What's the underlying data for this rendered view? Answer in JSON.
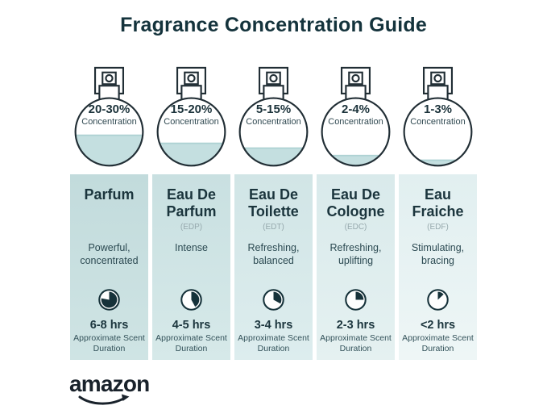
{
  "title": "Fragrance Concentration Guide",
  "brand": {
    "name": "amazon"
  },
  "colors": {
    "title_text": "#14333c",
    "accent_dark": "#16323a",
    "card_teal_darkest": "#c2dbdc",
    "card_teal_lightest": "#eef6f6",
    "bottle_liquid": "#c4dfe0",
    "abbr_gray": "#96a9ad",
    "logo_dark": "#19222b"
  },
  "bottles": [
    {
      "concentration": "20-30%",
      "label": "Concentration",
      "fill_pct": 46
    },
    {
      "concentration": "15-20%",
      "label": "Concentration",
      "fill_pct": 34
    },
    {
      "concentration": "5-15%",
      "label": "Concentration",
      "fill_pct": 27
    },
    {
      "concentration": "2-4%",
      "label": "Concentration",
      "fill_pct": 16
    },
    {
      "concentration": "1-3%",
      "label": "Concentration",
      "fill_pct": 9
    }
  ],
  "columns": [
    {
      "name": "Parfum",
      "abbr": "",
      "description": "Powerful, concentrated",
      "clock_pct": 78,
      "duration": "6-8 hrs",
      "duration_note": "Approximate Scent Duration"
    },
    {
      "name": "Eau De Parfum",
      "abbr": "(EDP)",
      "description": "Intense",
      "clock_pct": 42,
      "duration": "4-5 hrs",
      "duration_note": "Approximate Scent Duration"
    },
    {
      "name": "Eau De Toilette",
      "abbr": "(EDT)",
      "description": "Refreshing, balanced",
      "clock_pct": 33,
      "duration": "3-4 hrs",
      "duration_note": "Approximate Scent Duration"
    },
    {
      "name": "Eau De Cologne",
      "abbr": "(EDC)",
      "description": "Refreshing, uplifting",
      "clock_pct": 25,
      "duration": "2-3 hrs",
      "duration_note": "Approximate Scent Duration"
    },
    {
      "name": "Eau Fraiche",
      "abbr": "(EDF)",
      "description": "Stimulating, bracing",
      "clock_pct": 13,
      "duration": "<2 hrs",
      "duration_note": "Approximate Scent Duration"
    }
  ]
}
